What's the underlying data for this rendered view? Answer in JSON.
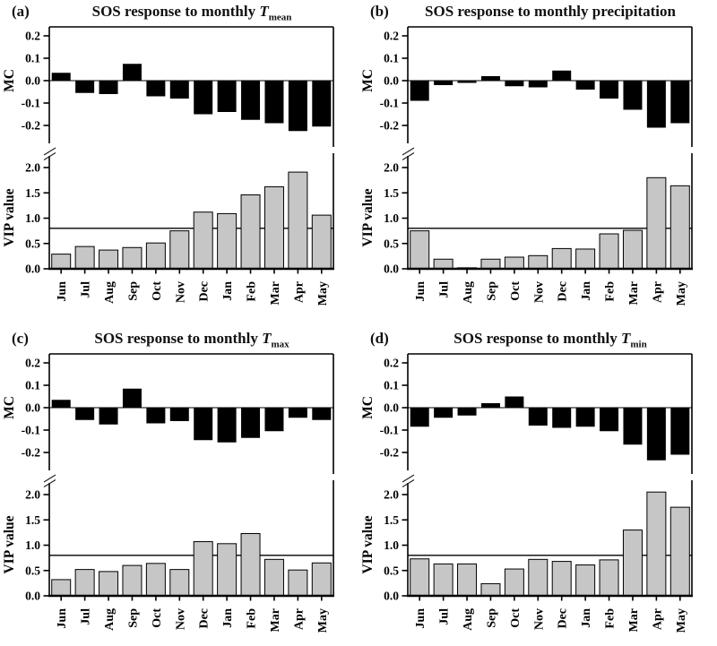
{
  "chart_data": [
    {
      "type": "bar",
      "panel_label": "(a)",
      "title": "SOS response to monthly T_mean",
      "title_parts": {
        "main": "SOS response to monthly ",
        "var": "T",
        "sub": "mean"
      },
      "categories": [
        "Jun",
        "Jul",
        "Aug",
        "Sep",
        "Oct",
        "Nov",
        "Dec",
        "Jan",
        "Feb",
        "Mar",
        "Apr",
        "May"
      ],
      "axis_break": true,
      "grid": false,
      "legend": "none",
      "series": [
        {
          "name": "MC",
          "position": "top",
          "ylabel": "MC",
          "bar_color": "#000000",
          "ylim": [
            -0.25,
            0.25
          ],
          "yticks": [
            0.2,
            0.1,
            0.0,
            -0.1,
            -0.2
          ],
          "values": [
            0.035,
            -0.055,
            -0.06,
            0.075,
            -0.07,
            -0.08,
            -0.15,
            -0.14,
            -0.175,
            -0.19,
            -0.225,
            -0.205
          ]
        },
        {
          "name": "VIP value",
          "position": "bottom",
          "ylabel": "VIP value",
          "bar_color": "#c6c6c6",
          "ylim": [
            0,
            2.25
          ],
          "yticks": [
            2.0,
            1.5,
            1.0,
            0.5,
            0.0
          ],
          "ref_line": 0.8,
          "values": [
            0.29,
            0.44,
            0.37,
            0.42,
            0.51,
            0.75,
            1.12,
            1.09,
            1.46,
            1.62,
            1.91,
            1.06
          ]
        }
      ]
    },
    {
      "type": "bar",
      "panel_label": "(b)",
      "title": "SOS response to monthly precipitation",
      "title_parts": {
        "main": "SOS response to monthly precipitation",
        "var": "",
        "sub": ""
      },
      "categories": [
        "Jun",
        "Jul",
        "Aug",
        "Sep",
        "Oct",
        "Nov",
        "Dec",
        "Jan",
        "Feb",
        "Mar",
        "Apr",
        "May"
      ],
      "axis_break": true,
      "grid": false,
      "legend": "none",
      "series": [
        {
          "name": "MC",
          "position": "top",
          "ylabel": "MC",
          "bar_color": "#000000",
          "ylim": [
            -0.25,
            0.25
          ],
          "yticks": [
            0.2,
            0.1,
            0.0,
            -0.1,
            -0.2
          ],
          "values": [
            -0.09,
            -0.02,
            -0.01,
            0.02,
            -0.025,
            -0.03,
            0.045,
            -0.04,
            -0.08,
            -0.13,
            -0.21,
            -0.19
          ]
        },
        {
          "name": "VIP value",
          "position": "bottom",
          "ylabel": "VIP value",
          "bar_color": "#c6c6c6",
          "ylim": [
            0,
            2.25
          ],
          "yticks": [
            2.0,
            1.5,
            1.0,
            0.5,
            0.0
          ],
          "ref_line": 0.8,
          "values": [
            0.75,
            0.19,
            0.02,
            0.19,
            0.23,
            0.26,
            0.4,
            0.39,
            0.69,
            0.76,
            1.8,
            1.64
          ]
        }
      ]
    },
    {
      "type": "bar",
      "panel_label": "(c)",
      "title": "SOS response to monthly T_max",
      "title_parts": {
        "main": "SOS response to monthly ",
        "var": "T",
        "sub": "max"
      },
      "categories": [
        "Jun",
        "Jul",
        "Aug",
        "Sep",
        "Oct",
        "Nov",
        "Dec",
        "Jan",
        "Feb",
        "Mar",
        "Apr",
        "May"
      ],
      "axis_break": true,
      "grid": false,
      "legend": "none",
      "series": [
        {
          "name": "MC",
          "position": "top",
          "ylabel": "MC",
          "bar_color": "#000000",
          "ylim": [
            -0.25,
            0.25
          ],
          "yticks": [
            0.2,
            0.1,
            0.0,
            -0.1,
            -0.2
          ],
          "values": [
            0.035,
            -0.055,
            -0.075,
            0.085,
            -0.07,
            -0.06,
            -0.145,
            -0.155,
            -0.135,
            -0.105,
            -0.045,
            -0.055
          ]
        },
        {
          "name": "VIP value",
          "position": "bottom",
          "ylabel": "VIP value",
          "bar_color": "#c6c6c6",
          "ylim": [
            0,
            2.25
          ],
          "yticks": [
            2.0,
            1.5,
            1.0,
            0.5,
            0.0
          ],
          "ref_line": 0.8,
          "values": [
            0.32,
            0.52,
            0.48,
            0.6,
            0.64,
            0.52,
            1.07,
            1.03,
            1.23,
            0.72,
            0.51,
            0.65
          ]
        }
      ]
    },
    {
      "type": "bar",
      "panel_label": "(d)",
      "title": "SOS response to monthly T_min",
      "title_parts": {
        "main": "SOS response to monthly ",
        "var": "T",
        "sub": "min"
      },
      "categories": [
        "Jun",
        "Jul",
        "Aug",
        "Sep",
        "Oct",
        "Nov",
        "Dec",
        "Jan",
        "Feb",
        "Mar",
        "Apr",
        "May"
      ],
      "axis_break": true,
      "grid": false,
      "legend": "none",
      "series": [
        {
          "name": "MC",
          "position": "top",
          "ylabel": "MC",
          "bar_color": "#000000",
          "ylim": [
            -0.25,
            0.25
          ],
          "yticks": [
            0.2,
            0.1,
            0.0,
            -0.1,
            -0.2
          ],
          "values": [
            -0.085,
            -0.045,
            -0.035,
            0.02,
            0.05,
            -0.08,
            -0.09,
            -0.085,
            -0.105,
            -0.165,
            -0.235,
            -0.21
          ]
        },
        {
          "name": "VIP value",
          "position": "bottom",
          "ylabel": "VIP value",
          "bar_color": "#c6c6c6",
          "ylim": [
            0,
            2.25
          ],
          "yticks": [
            2.0,
            1.5,
            1.0,
            0.5,
            0.0
          ],
          "ref_line": 0.8,
          "values": [
            0.73,
            0.63,
            0.63,
            0.24,
            0.53,
            0.72,
            0.68,
            0.61,
            0.71,
            1.3,
            2.05,
            1.75
          ]
        }
      ]
    }
  ],
  "style": {
    "frame_color": "#000000",
    "mc_bar_color": "#000000",
    "vip_bar_color": "#c6c6c6",
    "bar_outline_color": "#000000",
    "background": "#ffffff"
  }
}
